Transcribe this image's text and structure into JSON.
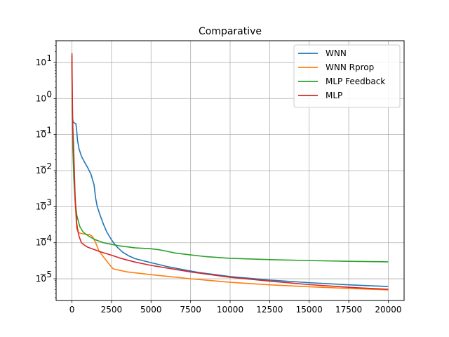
{
  "chart_data": {
    "type": "line",
    "title": "Comparative",
    "xlabel": "",
    "ylabel": "",
    "xlim": [
      -1000,
      21000
    ],
    "ylim": [
      2.5e-06,
      40
    ],
    "yscale": "log",
    "grid": true,
    "legend_position": "top-right",
    "x_ticks": [
      0,
      2500,
      5000,
      7500,
      10000,
      12500,
      15000,
      17500,
      20000
    ],
    "x_tick_labels": [
      "0",
      "2500",
      "5000",
      "7500",
      "10000",
      "12500",
      "15000",
      "17500",
      "20000"
    ],
    "y_ticks": [
      1e-05,
      0.0001,
      0.001,
      0.01,
      0.1,
      1,
      10
    ],
    "y_tick_labels": [
      {
        "base": "10",
        "exp": "−5"
      },
      {
        "base": "10",
        "exp": "−4"
      },
      {
        "base": "10",
        "exp": "−3"
      },
      {
        "base": "10",
        "exp": "−2"
      },
      {
        "base": "10",
        "exp": "−1"
      },
      {
        "base": "10",
        "exp": "0"
      },
      {
        "base": "10",
        "exp": "1"
      }
    ],
    "series": [
      {
        "name": "WNN",
        "color": "#1f77b4",
        "x": [
          0,
          10,
          30,
          80,
          150,
          250,
          300,
          350,
          450,
          600,
          800,
          1000,
          1200,
          1400,
          1500,
          1600,
          1800,
          2000,
          2200,
          2500,
          2800,
          3200,
          3600,
          4000,
          5000,
          6000,
          7000,
          8000,
          10000,
          12500,
          15000,
          17500,
          20000
        ],
        "y": [
          15,
          1.2,
          0.3,
          0.22,
          0.21,
          0.2,
          0.13,
          0.07,
          0.04,
          0.025,
          0.017,
          0.012,
          0.008,
          0.004,
          0.0017,
          0.001,
          0.00055,
          0.00032,
          0.0002,
          0.00012,
          8e-05,
          5.5e-05,
          4.3e-05,
          3.6e-05,
          2.8e-05,
          2.2e-05,
          1.8e-05,
          1.5e-05,
          1.15e-05,
          9.2e-06,
          7.8e-06,
          6.8e-06,
          6.1e-06
        ]
      },
      {
        "name": "WNN Rprop",
        "color": "#ff7f0e",
        "x": [
          0,
          20,
          60,
          120,
          200,
          300,
          400,
          600,
          900,
          1100,
          1300,
          1500,
          1700,
          2000,
          2400,
          2600,
          2800,
          3500,
          5000,
          7500,
          10000,
          12500,
          15000,
          17500,
          20000
        ],
        "y": [
          12,
          0.8,
          0.05,
          0.008,
          0.0015,
          0.00025,
          0.00019,
          0.00018,
          0.00017,
          0.00017,
          0.00015,
          0.0001,
          6e-05,
          4e-05,
          2.4e-05,
          1.9e-05,
          1.8e-05,
          1.55e-05,
          1.3e-05,
          1e-05,
          8e-06,
          6.8e-06,
          6e-06,
          5.4e-06,
          4.9e-06
        ]
      },
      {
        "name": "MLP Feedback",
        "color": "#2ca02c",
        "x": [
          0,
          20,
          60,
          120,
          200,
          300,
          400,
          500,
          700,
          900,
          1200,
          1500,
          2000,
          2500,
          3000,
          3500,
          4000,
          5000,
          5500,
          6000,
          6500,
          7500,
          8500,
          10000,
          12500,
          15000,
          17500,
          20000
        ],
        "y": [
          10,
          0.6,
          0.04,
          0.006,
          0.0015,
          0.0006,
          0.0004,
          0.00028,
          0.0002,
          0.00017,
          0.00014,
          0.00012,
          0.0001,
          9e-05,
          8.2e-05,
          7.7e-05,
          7.2e-05,
          6.8e-05,
          6.4e-05,
          5.8e-05,
          5.2e-05,
          4.6e-05,
          4.1e-05,
          3.7e-05,
          3.4e-05,
          3.2e-05,
          3.05e-05,
          2.95e-05
        ]
      },
      {
        "name": "MLP",
        "color": "#d62728",
        "x": [
          0,
          20,
          50,
          100,
          150,
          200,
          250,
          300,
          350,
          450,
          600,
          800,
          1000,
          1400,
          1800,
          2500,
          3000,
          3500,
          4000,
          5000,
          7500,
          10000,
          12500,
          15000,
          17500,
          20000
        ],
        "y": [
          18,
          1.5,
          0.2,
          0.05,
          0.01,
          0.002,
          0.0008,
          0.00035,
          0.00025,
          0.00015,
          0.0001,
          8.5e-05,
          7.5e-05,
          6.5e-05,
          5.6e-05,
          4.5e-05,
          3.8e-05,
          3.3e-05,
          2.9e-05,
          2.35e-05,
          1.55e-05,
          1.1e-05,
          8.6e-06,
          6.9e-06,
          5.8e-06,
          5.1e-06
        ]
      }
    ]
  }
}
